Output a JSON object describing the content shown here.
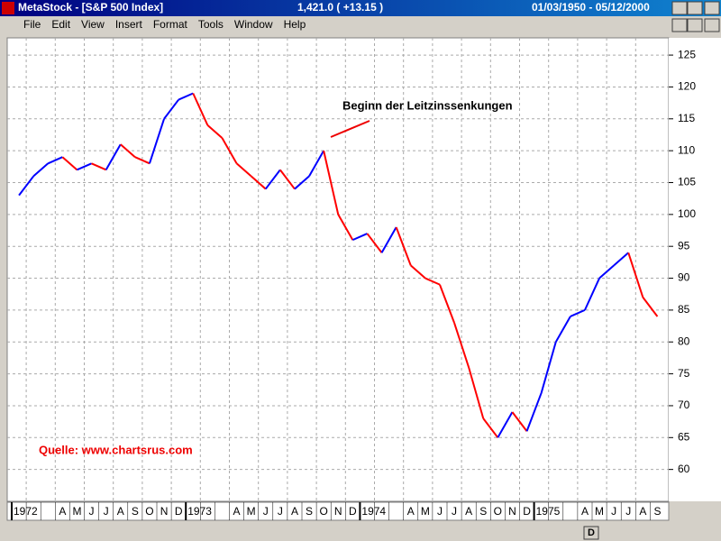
{
  "window": {
    "title": "MetaStock - [S&P 500 Index]",
    "quote": "1,421.0 ( +13.15 )",
    "date_range": "01/03/1950 - 05/12/2000"
  },
  "menu": [
    "File",
    "Edit",
    "View",
    "Insert",
    "Format",
    "Tools",
    "Window",
    "Help"
  ],
  "toolbar": {
    "period": "D"
  },
  "chart_data": {
    "type": "line",
    "categories": [
      "1972",
      null,
      null,
      "A",
      "M",
      "J",
      "J",
      "A",
      "S",
      "O",
      "N",
      "D",
      "1973",
      null,
      null,
      "A",
      "M",
      "J",
      "J",
      "A",
      "S",
      "O",
      "N",
      "D",
      "1974",
      null,
      null,
      "A",
      "M",
      "J",
      "J",
      "A",
      "S",
      "O",
      "N",
      "D",
      "1975",
      null,
      null,
      "A",
      "M",
      "J",
      "J",
      "A",
      "S"
    ],
    "series": [
      {
        "values": [
          103,
          106,
          108,
          109,
          107,
          108,
          107,
          111,
          109,
          108,
          115,
          118,
          119,
          114,
          112,
          108,
          106,
          104,
          107,
          104,
          106,
          110,
          100,
          96,
          97,
          94,
          98,
          92,
          90,
          89,
          83,
          76,
          68,
          65,
          69,
          66,
          72,
          80,
          84,
          85,
          90,
          92,
          94,
          87,
          84
        ]
      }
    ],
    "up_color": "#0000ff",
    "down_color": "#ff0000",
    "ylim": [
      55,
      127.7
    ],
    "yticks": [
      60,
      65,
      70,
      75,
      80,
      85,
      90,
      95,
      100,
      105,
      110,
      115,
      120,
      125
    ],
    "grid": true,
    "annotation": "Beginn der Leitzinssenkungen",
    "source": "Quelle:  www.chartsrus.com"
  }
}
